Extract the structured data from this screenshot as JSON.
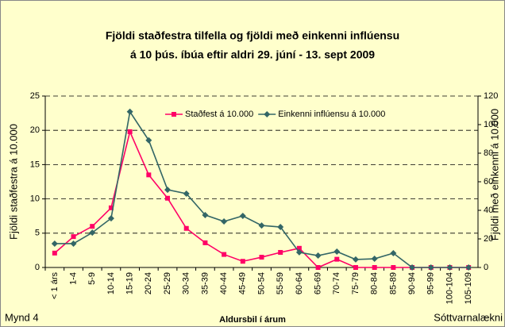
{
  "chart_data": {
    "type": "line",
    "title": "Fjöldi staðfestra tilfella og fjöldi með einkenni inflúensu",
    "subtitle": "á 10 þús. íbúa eftir aldri 29. júní - 13. sept 2009",
    "y_label": "Fjöldi staðfestra á 10.000",
    "y2_label": "Fjöldi með einkenni á 10.000",
    "x_label": "Aldursbil í árum",
    "footer_left": "Mynd 4",
    "footer_right": "Sóttvarnalækni",
    "categories": [
      "< 1 árs",
      "1-4",
      "5-9",
      "10-14",
      "15-19",
      "20-24",
      "25-29",
      "30-34",
      "35-39",
      "40-44",
      "45-49",
      "50-54",
      "55-59",
      "60-64",
      "65-69",
      "70-74",
      "75-79",
      "80-84",
      "85-89",
      "90-94",
      "95-99",
      "100-104",
      "105-109"
    ],
    "series": [
      {
        "name": "Staðfest á 10.000",
        "color": "#ff0066",
        "marker": "square",
        "values": [
          2.1,
          4.5,
          6.0,
          8.7,
          19.8,
          13.5,
          10.1,
          5.7,
          3.6,
          1.9,
          0.9,
          1.5,
          2.2,
          2.8,
          0,
          1.2,
          0,
          0,
          0,
          0,
          0,
          0,
          0
        ]
      },
      {
        "name": "Einkenni inflúensu á 10.000",
        "color": "#336666",
        "marker": "diamond",
        "axis": "y2",
        "values": [
          16.7,
          16.7,
          24.4,
          34.4,
          109,
          89,
          54.4,
          51.7,
          36.7,
          32.2,
          36.1,
          29.4,
          28.3,
          10.6,
          8.3,
          11.1,
          5.6,
          6.1,
          10,
          0,
          0,
          0,
          0
        ]
      }
    ],
    "ylim": [
      0,
      25
    ],
    "yticks": [
      0,
      5,
      10,
      15,
      20,
      25
    ],
    "y2lim": [
      0,
      120
    ],
    "y2ticks": [
      0,
      20,
      40,
      60,
      80,
      100,
      120
    ],
    "grid": true
  }
}
